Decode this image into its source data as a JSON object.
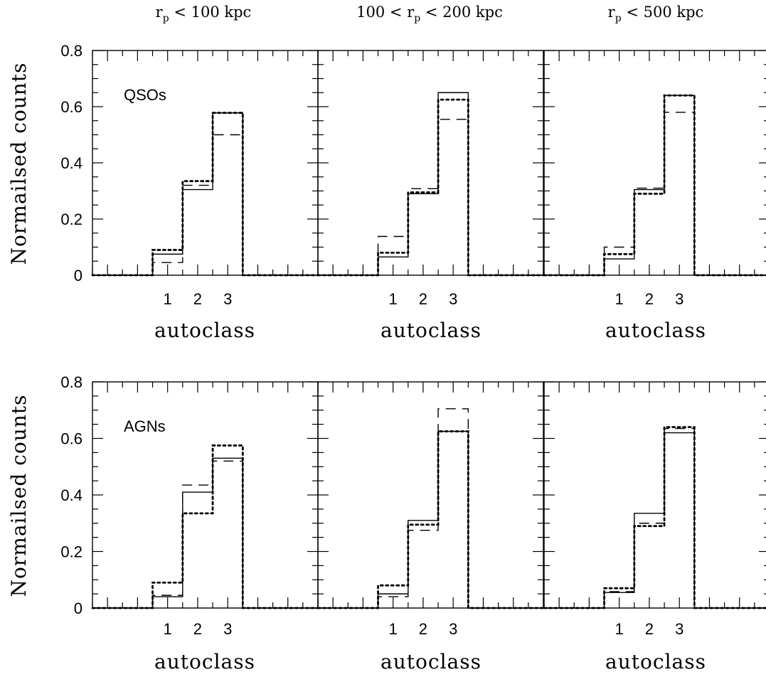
{
  "column_titles": [
    {
      "r": "r",
      "sub": "p",
      "text": " < 100 kpc",
      "pre": ""
    },
    {
      "pre": "100 < ",
      "r": "r",
      "sub": "p",
      "text": " < 200 kpc"
    },
    {
      "r": "r",
      "sub": "p",
      "text": " < 500 kpc",
      "pre": ""
    }
  ],
  "ylabel": "Normailsed counts",
  "xlabel": "autoclass",
  "yticks": [
    "0",
    "0.2",
    "0.4",
    "0.6",
    "0.8"
  ],
  "xticks": [
    "1",
    "2",
    "3"
  ],
  "row_labels": [
    "QSOs",
    "AGNs"
  ],
  "chart_data": {
    "type": "histogram-step",
    "xlim": [
      -1.5,
      6.0
    ],
    "ylim": [
      0,
      0.8
    ],
    "bin_edges": [
      -1.5,
      0.5,
      1.5,
      2.5,
      3.5,
      6.0
    ],
    "line_styles": [
      "solid",
      "dotted",
      "dashed"
    ],
    "panels": [
      {
        "row": 0,
        "col": 0,
        "label": "QSOs",
        "series": [
          {
            "style": "solid",
            "values": [
              0,
              0.075,
              0.305,
              0.578,
              0
            ]
          },
          {
            "style": "dotted",
            "values": [
              0,
              0.09,
              0.335,
              0.578,
              0
            ]
          },
          {
            "style": "dashed",
            "values": [
              0,
              0.045,
              0.32,
              0.5,
              0
            ]
          }
        ]
      },
      {
        "row": 0,
        "col": 1,
        "series": [
          {
            "style": "solid",
            "values": [
              0,
              0.065,
              0.29,
              0.65,
              0
            ]
          },
          {
            "style": "dotted",
            "values": [
              0,
              0.08,
              0.295,
              0.625,
              0
            ]
          },
          {
            "style": "dashed",
            "values": [
              0,
              0.138,
              0.308,
              0.555,
              0
            ]
          }
        ]
      },
      {
        "row": 0,
        "col": 2,
        "series": [
          {
            "style": "solid",
            "values": [
              0,
              0.058,
              0.305,
              0.64,
              0
            ]
          },
          {
            "style": "dotted",
            "values": [
              0,
              0.075,
              0.29,
              0.64,
              0
            ]
          },
          {
            "style": "dashed",
            "values": [
              0,
              0.1,
              0.31,
              0.58,
              0
            ]
          }
        ]
      },
      {
        "row": 1,
        "col": 0,
        "label": "AGNs",
        "series": [
          {
            "style": "solid",
            "values": [
              0,
              0.04,
              0.41,
              0.53,
              0
            ]
          },
          {
            "style": "dotted",
            "values": [
              0,
              0.09,
              0.335,
              0.575,
              0
            ]
          },
          {
            "style": "dashed",
            "values": [
              0,
              0.045,
              0.435,
              0.52,
              0
            ]
          }
        ]
      },
      {
        "row": 1,
        "col": 1,
        "series": [
          {
            "style": "solid",
            "values": [
              0,
              0.05,
              0.31,
              0.625,
              0
            ]
          },
          {
            "style": "dotted",
            "values": [
              0,
              0.08,
              0.295,
              0.625,
              0
            ]
          },
          {
            "style": "dashed",
            "values": [
              0,
              0.04,
              0.275,
              0.705,
              0
            ]
          }
        ]
      },
      {
        "row": 1,
        "col": 2,
        "series": [
          {
            "style": "solid",
            "values": [
              0,
              0.055,
              0.335,
              0.62,
              0
            ]
          },
          {
            "style": "dotted",
            "values": [
              0,
              0.07,
              0.29,
              0.64,
              0
            ]
          },
          {
            "style": "dashed",
            "values": [
              0,
              0.058,
              0.3,
              0.635,
              0
            ]
          }
        ]
      }
    ]
  }
}
